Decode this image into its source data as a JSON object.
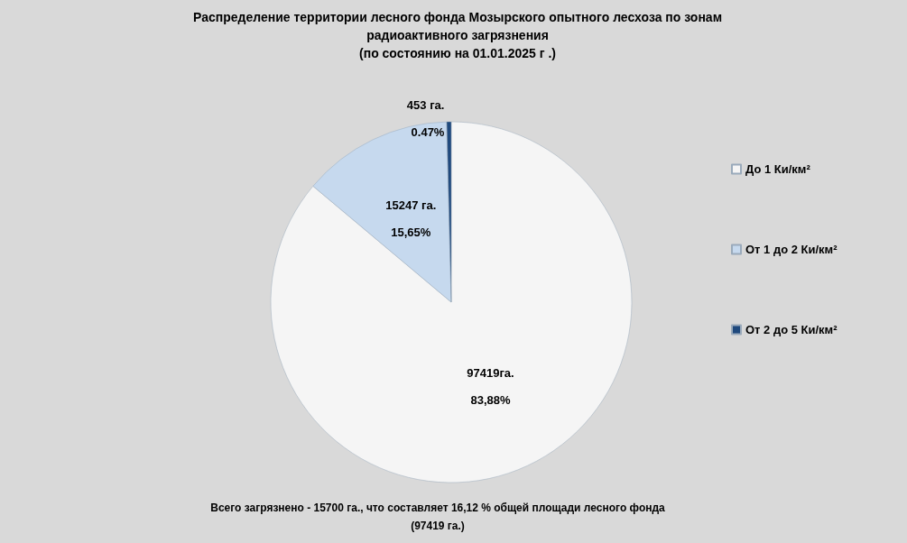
{
  "chart_data": {
    "type": "pie",
    "title": "Распределение территории лесного фонда Мозырского опытного лесхоза по зонам\nрадиоактивного загрязнения\n(по состоянию на 01.01.2025 г .)",
    "categories": [
      "До 1 Ки/км²",
      "От 1 до 2 Ки/км²",
      "От 2 до 5 Ки/км²"
    ],
    "values": [
      97419,
      15247,
      453
    ],
    "colors": [
      "#f5f5f5",
      "#c6d9ee",
      "#1f497d"
    ],
    "value_labels": [
      "97419га.\n\n83,88%",
      "15247 га.\n\n15,65%",
      "453 га.\n\n0.47%"
    ],
    "legend": "right",
    "annotations": [
      "Всего загрязнено - 15700 га., что составляет 16,12 % общей площади лесного фонда\n(97419 га.)"
    ]
  }
}
